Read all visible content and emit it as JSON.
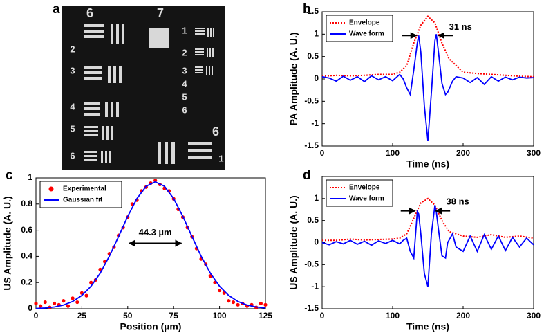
{
  "chart_data": [
    {
      "type": "image",
      "label": "a",
      "labels": [
        "6",
        "7",
        "2",
        "3",
        "4",
        "5",
        "6",
        "1",
        "2",
        "3",
        "4",
        "5",
        "6",
        "6",
        "1"
      ]
    },
    {
      "type": "line",
      "label": "b",
      "xlabel": "Time (ns)",
      "ylabel": "PA Amplitude (A. U.)",
      "xlim": [
        0,
        300
      ],
      "ylim": [
        -1.5,
        1.5
      ],
      "xticks": [
        0,
        100,
        200,
        300
      ],
      "yticks": [
        -1.5,
        -1,
        -0.5,
        0,
        0.5,
        1,
        1.5
      ],
      "legend": "upper left",
      "annotation": "31 ns",
      "series": [
        {
          "name": "Envelope",
          "color": "#ff0000",
          "style": "dotted",
          "x": [
            0,
            20,
            40,
            60,
            80,
            100,
            110,
            120,
            130,
            140,
            150,
            160,
            170,
            180,
            190,
            200,
            220,
            240,
            260,
            280,
            300
          ],
          "values": [
            0.06,
            0.08,
            0.07,
            0.08,
            0.1,
            0.1,
            0.15,
            0.3,
            0.8,
            1.2,
            1.4,
            1.25,
            0.8,
            0.45,
            0.3,
            0.15,
            0.12,
            0.1,
            0.08,
            0.06,
            0.05
          ]
        },
        {
          "name": "Wave form",
          "color": "#0000ff",
          "style": "solid",
          "x": [
            0,
            10,
            20,
            30,
            40,
            50,
            60,
            70,
            80,
            90,
            100,
            110,
            115,
            120,
            125,
            130,
            135,
            137,
            140,
            145,
            150,
            155,
            160,
            162,
            165,
            170,
            175,
            178,
            185,
            190,
            200,
            210,
            220,
            230,
            240,
            250,
            260,
            270,
            280,
            290,
            300
          ],
          "values": [
            0.05,
            0.02,
            -0.05,
            0.06,
            -0.03,
            0.05,
            -0.06,
            0.07,
            -0.02,
            0.05,
            -0.04,
            0.1,
            0,
            -0.2,
            -0.35,
            0.2,
            0.8,
            0.97,
            0.6,
            -0.6,
            -1.38,
            -0.3,
            0.85,
            1.0,
            0.6,
            -0.1,
            -0.35,
            -0.3,
            -0.05,
            0.05,
            0.02,
            -0.08,
            0.03,
            -0.12,
            0.05,
            -0.05,
            0.04,
            -0.02,
            0.04,
            0.02,
            0.03
          ]
        }
      ]
    },
    {
      "type": "scatter",
      "label": "c",
      "xlabel": "Position (µm)",
      "ylabel": "US Amplitude (A. U.)",
      "xlim": [
        0,
        125
      ],
      "ylim": [
        0,
        1
      ],
      "xticks": [
        0,
        25,
        50,
        75,
        100,
        125
      ],
      "yticks": [
        0,
        0.2,
        0.4,
        0.6,
        0.8,
        1
      ],
      "legend": "upper left",
      "annotation": "44.3 µm",
      "series": [
        {
          "name": "Experimental",
          "color": "#ff0000",
          "style": "markers",
          "x": [
            0,
            2.5,
            5,
            7.5,
            10,
            12.5,
            15,
            17.5,
            20,
            22.5,
            25,
            27.5,
            30,
            32.5,
            35,
            37.5,
            40,
            42.5,
            45,
            47.5,
            50,
            52.5,
            55,
            57.5,
            60,
            62.5,
            65,
            67.5,
            70,
            72.5,
            75,
            77.5,
            80,
            82.5,
            85,
            87.5,
            90,
            92.5,
            95,
            97.5,
            100,
            102.5,
            105,
            107.5,
            110,
            112.5,
            115,
            117.5,
            120,
            122.5,
            125
          ],
          "values": [
            0.04,
            0.02,
            0.05,
            0.01,
            0.04,
            0.03,
            0.06,
            0.02,
            0.08,
            0.05,
            0.12,
            0.1,
            0.2,
            0.22,
            0.3,
            0.36,
            0.42,
            0.47,
            0.56,
            0.62,
            0.7,
            0.8,
            0.83,
            0.9,
            0.93,
            0.96,
            0.98,
            0.95,
            0.92,
            0.9,
            0.84,
            0.76,
            0.7,
            0.62,
            0.55,
            0.46,
            0.38,
            0.34,
            0.25,
            0.2,
            0.14,
            0.12,
            0.06,
            0.05,
            0.03,
            0.04,
            0.02,
            0.03,
            0.01,
            0.04,
            0.03
          ]
        },
        {
          "name": "Gaussian fit",
          "color": "#0000ff",
          "style": "solid",
          "x": [
            0,
            5,
            10,
            15,
            20,
            25,
            30,
            35,
            40,
            45,
            50,
            55,
            60,
            65,
            70,
            75,
            80,
            85,
            90,
            95,
            100,
            105,
            110,
            115,
            120,
            125
          ],
          "values": [
            0.002,
            0.006,
            0.013,
            0.028,
            0.055,
            0.101,
            0.172,
            0.272,
            0.401,
            0.551,
            0.706,
            0.842,
            0.936,
            0.97,
            0.936,
            0.842,
            0.706,
            0.551,
            0.401,
            0.272,
            0.172,
            0.101,
            0.055,
            0.028,
            0.013,
            0.006
          ]
        }
      ]
    },
    {
      "type": "line",
      "label": "d",
      "xlabel": "Time (ns)",
      "ylabel": "US Amplitude (A. U.)",
      "xlim": [
        0,
        300
      ],
      "ylim": [
        -1.5,
        1.5
      ],
      "xticks": [
        0,
        100,
        200,
        300
      ],
      "yticks": [
        -1.5,
        -1,
        -0.5,
        0,
        0.5,
        1
      ],
      "legend": "upper left",
      "annotation": "38 ns",
      "series": [
        {
          "name": "Envelope",
          "color": "#ff0000",
          "style": "dotted",
          "x": [
            0,
            20,
            40,
            60,
            80,
            100,
            110,
            120,
            130,
            140,
            150,
            160,
            170,
            180,
            190,
            200,
            220,
            240,
            260,
            280,
            300
          ],
          "values": [
            0.05,
            0.05,
            0.08,
            0.06,
            0.07,
            0.08,
            0.1,
            0.2,
            0.55,
            0.9,
            1.0,
            0.85,
            0.5,
            0.25,
            0.2,
            0.15,
            0.12,
            0.18,
            0.12,
            0.15,
            0.1
          ]
        },
        {
          "name": "Wave form",
          "color": "#0000ff",
          "style": "solid",
          "x": [
            0,
            10,
            20,
            30,
            40,
            50,
            60,
            70,
            80,
            90,
            100,
            110,
            115,
            120,
            125,
            130,
            135,
            137,
            140,
            145,
            150,
            155,
            160,
            162,
            165,
            170,
            175,
            178,
            185,
            190,
            200,
            210,
            220,
            230,
            240,
            250,
            260,
            270,
            280,
            290,
            300
          ],
          "values": [
            0.0,
            -0.05,
            0.02,
            -0.03,
            0.05,
            -0.04,
            0.03,
            -0.06,
            0.04,
            -0.02,
            0.05,
            -0.03,
            0.05,
            0.1,
            -0.2,
            -0.35,
            0.7,
            0.65,
            0.2,
            -0.7,
            -1.0,
            0.2,
            0.85,
            0.7,
            0.3,
            -0.3,
            -0.35,
            0.0,
            0.2,
            -0.1,
            -0.2,
            0.15,
            -0.2,
            0.18,
            -0.15,
            0.15,
            -0.18,
            0.12,
            -0.1,
            0.1,
            -0.05
          ]
        }
      ]
    }
  ]
}
